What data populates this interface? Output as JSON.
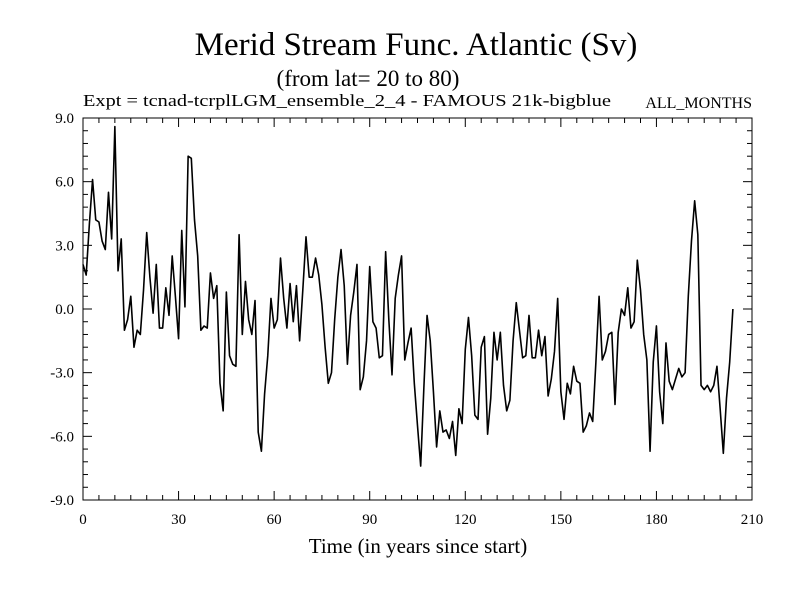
{
  "chart_data": {
    "type": "line",
    "title": "Merid Stream Func. Atlantic (Sv)",
    "subtitle": "(from lat= 20 to 80)",
    "experiment": "Expt = tcnad-tcrpl",
    "run": "LGM_ensemble_2_4 - FAMOUS 21k-bigblue",
    "period": "ALL_MONTHS",
    "xlabel": "Time (in years since start)",
    "ylabel": "",
    "xlim": [
      0,
      210
    ],
    "ylim": [
      -9.0,
      9.0
    ],
    "xticks": [
      0,
      30,
      60,
      90,
      120,
      150,
      180,
      210
    ],
    "yticks": [
      -9.0,
      -6.0,
      -3.0,
      0.0,
      3.0,
      6.0,
      9.0
    ],
    "ytick_labels": [
      "-9.0",
      "-6.0",
      "-3.0",
      "0.0",
      "3.0",
      "6.0",
      "9.0"
    ],
    "series": [
      {
        "name": "Merid Stream Func. Atlantic",
        "x_start": 0,
        "x_step": 1,
        "values": [
          2.1,
          1.6,
          4.0,
          6.1,
          4.2,
          4.1,
          3.2,
          2.8,
          5.5,
          3.3,
          8.6,
          1.8,
          3.3,
          -1.0,
          -0.5,
          0.6,
          -1.8,
          -1.0,
          -1.2,
          0.9,
          3.6,
          1.5,
          -0.2,
          2.1,
          -0.9,
          -0.9,
          1.0,
          -0.3,
          2.5,
          0.6,
          -1.4,
          3.7,
          0.1,
          7.2,
          7.1,
          4.2,
          2.5,
          -1.0,
          -0.8,
          -0.9,
          1.7,
          0.5,
          1.1,
          -3.5,
          -4.8,
          0.8,
          -2.2,
          -2.6,
          -2.7,
          3.5,
          -1.2,
          1.3,
          -0.5,
          -1.2,
          0.4,
          -5.8,
          -6.7,
          -4.0,
          -2.2,
          0.5,
          -0.9,
          -0.5,
          2.4,
          0.5,
          -0.9,
          1.2,
          -0.6,
          1.1,
          -1.5,
          0.9,
          3.4,
          1.5,
          1.5,
          2.4,
          1.6,
          0.2,
          -1.8,
          -3.5,
          -3.0,
          -0.5,
          1.5,
          2.8,
          1.1,
          -2.6,
          -0.3,
          0.8,
          2.1,
          -3.8,
          -3.2,
          -1.5,
          2.0,
          -0.6,
          -0.9,
          -2.3,
          -2.2,
          2.7,
          -0.5,
          -3.1,
          0.5,
          1.6,
          2.5,
          -2.4,
          -1.6,
          -0.9,
          -3.5,
          -5.5,
          -7.4,
          -3.7,
          -0.3,
          -1.5,
          -3.9,
          -6.5,
          -4.8,
          -5.8,
          -5.7,
          -6.1,
          -5.3,
          -6.9,
          -4.7,
          -5.4,
          -1.9,
          -0.4,
          -2.2,
          -5.0,
          -5.2,
          -1.8,
          -1.3,
          -5.9,
          -4.2,
          -1.1,
          -2.4,
          -1.1,
          -3.6,
          -4.8,
          -4.3,
          -1.5,
          0.3,
          -1.0,
          -2.3,
          -2.2,
          -0.3,
          -2.3,
          -2.3,
          -1.0,
          -2.2,
          -1.3,
          -4.1,
          -3.3,
          -2.0,
          0.5,
          -3.9,
          -5.2,
          -3.5,
          -4.0,
          -2.7,
          -3.4,
          -3.5,
          -5.8,
          -5.5,
          -4.9,
          -5.3,
          -2.5,
          0.6,
          -2.4,
          -2.0,
          -1.2,
          -1.1,
          -4.5,
          -1.1,
          0.0,
          -0.3,
          1.0,
          -0.9,
          -0.6,
          2.3,
          0.9,
          -1.2,
          -2.4,
          -6.7,
          -2.5,
          -0.8,
          -3.9,
          -5.4,
          -1.6,
          -3.4,
          -3.8,
          -3.3,
          -2.8,
          -3.2,
          -3.0,
          0.6,
          3.2,
          5.1,
          3.5,
          -3.6,
          -3.8,
          -3.6,
          -3.9,
          -3.6,
          -2.7,
          -4.7,
          -6.8,
          -4.2,
          -2.5,
          0.0
        ]
      }
    ]
  }
}
